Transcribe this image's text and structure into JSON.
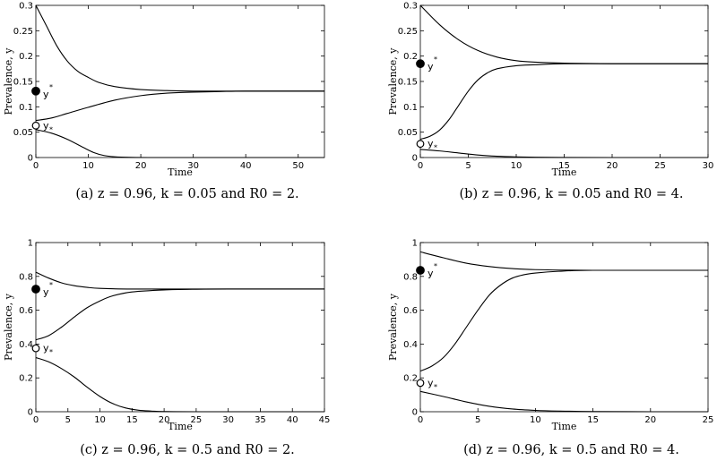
{
  "chart_data": [
    {
      "type": "line",
      "caption": "(a) z = 0.96, k = 0.05 and R0 = 2.",
      "xlabel": "Time",
      "ylabel": "Prevalence, y",
      "xlim": [
        0,
        55
      ],
      "ylim": [
        0,
        0.3
      ],
      "xticks": [
        0,
        10,
        20,
        30,
        40,
        50
      ],
      "yticks": [
        0,
        0.05,
        0.1,
        0.15,
        0.2,
        0.25,
        0.3
      ],
      "series": [
        {
          "x": [
            0,
            2,
            4,
            6,
            8,
            10,
            12,
            15,
            20,
            25,
            30,
            40,
            55
          ],
          "values": [
            0.3,
            0.26,
            0.22,
            0.19,
            0.17,
            0.158,
            0.148,
            0.14,
            0.134,
            0.132,
            0.131,
            0.131,
            0.131
          ]
        },
        {
          "x": [
            0,
            3,
            6,
            10,
            15,
            20,
            25,
            30,
            35,
            40,
            55
          ],
          "values": [
            0.073,
            0.078,
            0.087,
            0.099,
            0.113,
            0.122,
            0.127,
            0.129,
            0.13,
            0.131,
            0.131
          ]
        },
        {
          "x": [
            0,
            3,
            6,
            9,
            11,
            13,
            15,
            18,
            22,
            30,
            55
          ],
          "values": [
            0.055,
            0.048,
            0.036,
            0.02,
            0.01,
            0.004,
            0.0015,
            0.0003,
            0,
            0,
            0
          ]
        }
      ],
      "markers": [
        {
          "label": "y",
          "sup": "*",
          "kind": "filled",
          "x": 0,
          "y": 0.131
        },
        {
          "label": "y",
          "sub": "*",
          "kind": "open",
          "x": 0,
          "y": 0.063
        }
      ]
    },
    {
      "type": "line",
      "caption": "(b) z = 0.96, k = 0.05 and R0 = 4.",
      "xlabel": "Time",
      "ylabel": "Prevalence, y",
      "xlim": [
        0,
        30
      ],
      "ylim": [
        0,
        0.3
      ],
      "xticks": [
        0,
        5,
        10,
        15,
        20,
        25,
        30
      ],
      "yticks": [
        0,
        0.05,
        0.1,
        0.15,
        0.2,
        0.25,
        0.3
      ],
      "series": [
        {
          "x": [
            0,
            2,
            4,
            6,
            8,
            10,
            12,
            15,
            20,
            30
          ],
          "values": [
            0.3,
            0.262,
            0.232,
            0.211,
            0.198,
            0.191,
            0.188,
            0.186,
            0.185,
            0.185
          ]
        },
        {
          "x": [
            0,
            1,
            2,
            3,
            4,
            5,
            6,
            7,
            8,
            10,
            12,
            15,
            20,
            30
          ],
          "values": [
            0.036,
            0.042,
            0.054,
            0.075,
            0.103,
            0.131,
            0.153,
            0.167,
            0.175,
            0.181,
            0.183,
            0.185,
            0.185,
            0.185
          ]
        },
        {
          "x": [
            0,
            2,
            4,
            6,
            8,
            10,
            12,
            15,
            20,
            30
          ],
          "values": [
            0.016,
            0.013,
            0.009,
            0.005,
            0.0025,
            0.0012,
            0.0005,
            0.0001,
            0,
            0
          ]
        }
      ],
      "markers": [
        {
          "label": "y",
          "sup": "*",
          "kind": "filled",
          "x": 0,
          "y": 0.185
        },
        {
          "label": "y",
          "sub": "*",
          "kind": "open",
          "x": 0,
          "y": 0.027
        }
      ]
    },
    {
      "type": "line",
      "caption": "(c) z = 0.96, k = 0.5 and R0 = 2.",
      "xlabel": "Time",
      "ylabel": "Prevalence, y",
      "xlim": [
        0,
        45
      ],
      "ylim": [
        0,
        1
      ],
      "xticks": [
        0,
        5,
        10,
        15,
        20,
        25,
        30,
        35,
        40,
        45
      ],
      "yticks": [
        0,
        0.2,
        0.4,
        0.6,
        0.8,
        1
      ],
      "series": [
        {
          "x": [
            0,
            2,
            4,
            6,
            8,
            10,
            15,
            20,
            45
          ],
          "values": [
            0.825,
            0.79,
            0.762,
            0.745,
            0.735,
            0.729,
            0.725,
            0.725,
            0.725
          ]
        },
        {
          "x": [
            0,
            2,
            4,
            6,
            8,
            10,
            12,
            15,
            20,
            25,
            30,
            45
          ],
          "values": [
            0.425,
            0.45,
            0.5,
            0.56,
            0.615,
            0.655,
            0.685,
            0.708,
            0.72,
            0.724,
            0.725,
            0.725
          ]
        },
        {
          "x": [
            0,
            2,
            4,
            6,
            8,
            10,
            12,
            14,
            16,
            18,
            20,
            25,
            45
          ],
          "values": [
            0.32,
            0.295,
            0.255,
            0.205,
            0.145,
            0.09,
            0.048,
            0.022,
            0.009,
            0.004,
            0.001,
            0,
            0
          ]
        }
      ],
      "markers": [
        {
          "label": "y",
          "sup": "*",
          "kind": "filled",
          "x": 0,
          "y": 0.725
        },
        {
          "label": "y",
          "sub": "*",
          "kind": "open",
          "x": 0,
          "y": 0.375
        }
      ]
    },
    {
      "type": "line",
      "caption": "(d) z = 0.96, k = 0.5 and R0 = 4.",
      "xlabel": "Time",
      "ylabel": "Prevalence, y",
      "xlim": [
        0,
        25
      ],
      "ylim": [
        0,
        1
      ],
      "xticks": [
        0,
        5,
        10,
        15,
        20,
        25
      ],
      "yticks": [
        0,
        0.2,
        0.4,
        0.6,
        0.8,
        1
      ],
      "series": [
        {
          "x": [
            0,
            2,
            4,
            6,
            8,
            10,
            15,
            25
          ],
          "values": [
            0.945,
            0.91,
            0.878,
            0.858,
            0.846,
            0.84,
            0.836,
            0.836
          ]
        },
        {
          "x": [
            0,
            1,
            2,
            3,
            4,
            5,
            6,
            7,
            8,
            9,
            10,
            12,
            15,
            25
          ],
          "values": [
            0.24,
            0.27,
            0.32,
            0.4,
            0.5,
            0.6,
            0.69,
            0.75,
            0.79,
            0.81,
            0.82,
            0.83,
            0.836,
            0.836
          ]
        },
        {
          "x": [
            0,
            2,
            4,
            6,
            8,
            10,
            12,
            15,
            20,
            25
          ],
          "values": [
            0.12,
            0.09,
            0.058,
            0.032,
            0.016,
            0.008,
            0.004,
            0.001,
            0,
            0
          ]
        }
      ],
      "markers": [
        {
          "label": "y",
          "sup": "*",
          "kind": "filled",
          "x": 0,
          "y": 0.836
        },
        {
          "label": "y",
          "sub": "*",
          "kind": "open",
          "x": 0,
          "y": 0.17
        }
      ]
    }
  ],
  "style": {
    "line_color": "#000000",
    "frame_color": "#000000"
  }
}
